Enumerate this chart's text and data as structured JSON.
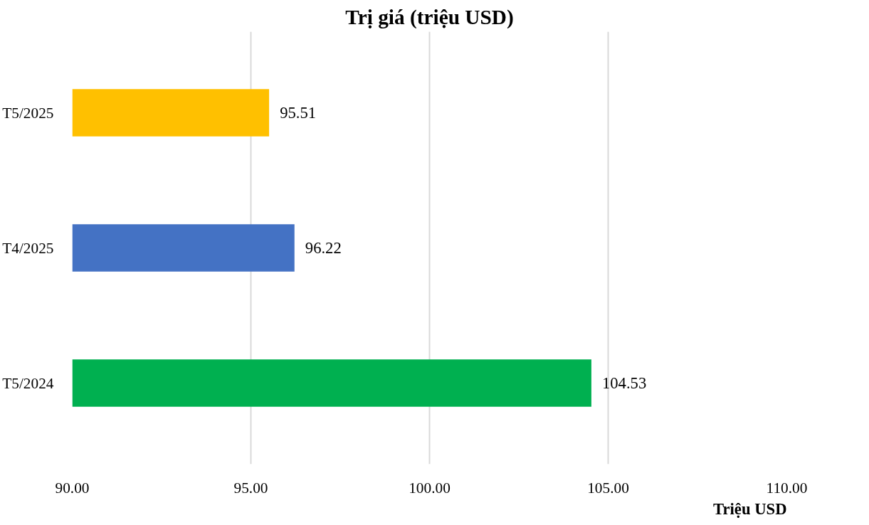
{
  "chart_data": {
    "type": "bar",
    "orientation": "horizontal",
    "title": "Trị giá (triệu USD)",
    "xlabel": "Triệu USD",
    "categories": [
      "T5/2025",
      "T4/2025",
      "T5/2024"
    ],
    "values": [
      95.51,
      96.22,
      104.53
    ],
    "colors": [
      "#ffc000",
      "#4472c4",
      "#00b050"
    ],
    "xlim": [
      90,
      110
    ],
    "xticks": [
      {
        "value": 90,
        "label": "90.00"
      },
      {
        "value": 95,
        "label": "95.00"
      },
      {
        "value": 100,
        "label": "100.00"
      },
      {
        "value": 105,
        "label": "105.00"
      },
      {
        "value": 110,
        "label": "110.00"
      }
    ],
    "grid": "x",
    "data_labels": true
  }
}
